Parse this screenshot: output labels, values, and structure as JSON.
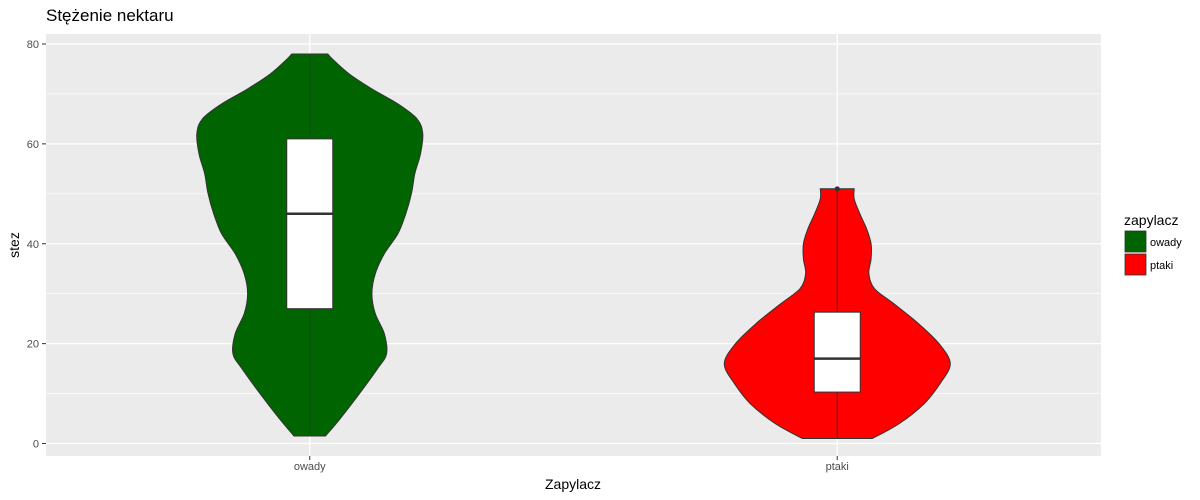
{
  "chart_data": {
    "type": "violin",
    "title": "Stężenie nektaru",
    "xlabel": "Zapylacz",
    "ylabel": "stez",
    "ylim": [
      -2.5,
      82
    ],
    "yticks": [
      0,
      20,
      40,
      60,
      80
    ],
    "categories": [
      "owady",
      "ptaki"
    ],
    "legend": {
      "title": "zapylacz",
      "position": "right",
      "entries": [
        {
          "label": "owady",
          "color": "#006400"
        },
        {
          "label": "ptaki",
          "color": "#ff0000"
        }
      ]
    },
    "grid": true,
    "series": [
      {
        "category": "owady",
        "color": "#006400",
        "min": 1.5,
        "max": 78,
        "box": {
          "q1": 27,
          "median": 46,
          "q3": 61,
          "whisker_low": 1.5,
          "whisker_high": 78
        },
        "outliers": [],
        "density": [
          [
            1.5,
            0.14
          ],
          [
            5,
            0.27
          ],
          [
            10,
            0.44
          ],
          [
            15,
            0.6
          ],
          [
            18,
            0.68
          ],
          [
            22,
            0.66
          ],
          [
            26,
            0.58
          ],
          [
            30,
            0.55
          ],
          [
            34,
            0.58
          ],
          [
            38,
            0.66
          ],
          [
            42,
            0.78
          ],
          [
            46,
            0.85
          ],
          [
            50,
            0.9
          ],
          [
            54,
            0.93
          ],
          [
            58,
            0.98
          ],
          [
            62,
            1.0
          ],
          [
            65,
            0.95
          ],
          [
            68,
            0.78
          ],
          [
            71,
            0.55
          ],
          [
            74,
            0.35
          ],
          [
            77,
            0.2
          ],
          [
            78,
            0.16
          ]
        ]
      },
      {
        "category": "ptaki",
        "color": "#ff0000",
        "min": 1,
        "max": 51,
        "box": {
          "q1": 10.3,
          "median": 17,
          "q3": 26.3,
          "whisker_low": 1,
          "whisker_high": 51
        },
        "outliers": [
          51
        ],
        "density": [
          [
            1,
            0.31
          ],
          [
            4,
            0.55
          ],
          [
            8,
            0.77
          ],
          [
            12,
            0.91
          ],
          [
            16,
            1.0
          ],
          [
            20,
            0.9
          ],
          [
            24,
            0.72
          ],
          [
            28,
            0.5
          ],
          [
            31,
            0.33
          ],
          [
            34,
            0.28
          ],
          [
            37,
            0.3
          ],
          [
            40,
            0.3
          ],
          [
            43,
            0.26
          ],
          [
            46,
            0.2
          ],
          [
            49,
            0.15
          ],
          [
            51,
            0.15
          ]
        ]
      }
    ]
  }
}
